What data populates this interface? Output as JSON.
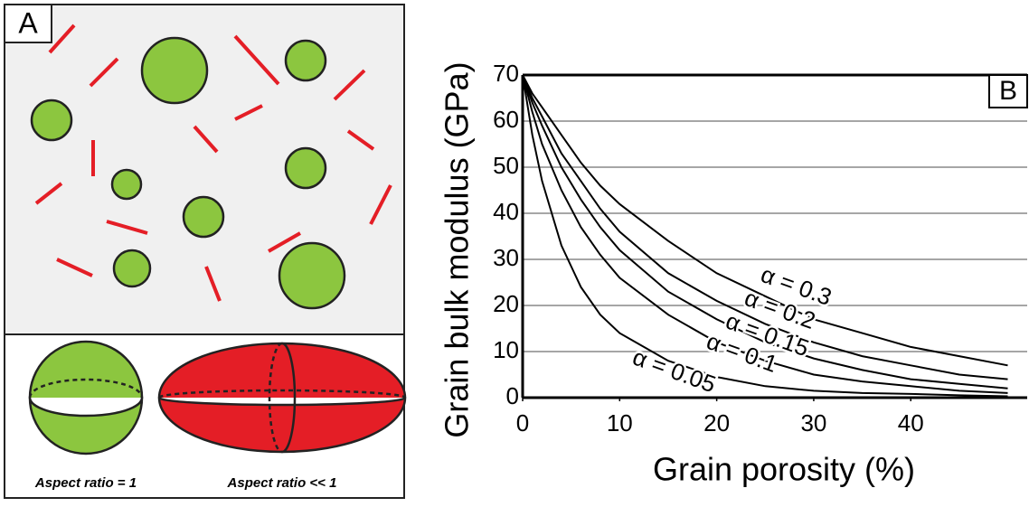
{
  "panel_a": {
    "label": "A",
    "captions": [
      "Aspect ratio = 1",
      "Aspect ratio << 1"
    ]
  },
  "chart_data": {
    "type": "line",
    "panel_label": "B",
    "x_label": "Grain porosity (%)",
    "y_label": "Grain bulk modulus (GPa)",
    "x": [
      0,
      1,
      2,
      4,
      6,
      8,
      10,
      15,
      20,
      25,
      30,
      35,
      40,
      45,
      50
    ],
    "series": [
      {
        "name": "α = 0.3",
        "color": "#000000",
        "values": [
          70,
          66,
          63,
          57,
          51,
          46,
          42,
          34,
          27,
          22,
          17,
          14,
          11,
          9,
          7
        ]
      },
      {
        "name": "α = 0.2",
        "color": "#000000",
        "values": [
          70,
          65,
          61,
          53,
          47,
          41,
          36,
          27,
          21,
          16,
          12,
          9,
          7,
          5,
          4
        ]
      },
      {
        "name": "α = 0.15",
        "color": "#000000",
        "values": [
          70,
          64,
          59,
          50,
          43,
          37,
          32,
          23,
          17,
          12,
          8.5,
          6,
          4,
          3,
          2
        ]
      },
      {
        "name": "α = 0.1",
        "color": "#000000",
        "values": [
          70,
          62,
          55,
          45,
          37,
          31,
          26,
          18,
          12,
          8,
          5,
          3.5,
          2.5,
          1.5,
          1
        ]
      },
      {
        "name": "α = 0.05",
        "color": "#000000",
        "values": [
          70,
          57,
          47,
          33,
          24,
          18,
          14,
          8,
          4.5,
          2.5,
          1.5,
          1,
          0.8,
          0.5,
          0.3
        ]
      }
    ],
    "xlim": [
      0,
      52
    ],
    "ylim": [
      0,
      70
    ],
    "xticks": [
      0,
      10,
      20,
      30,
      40
    ],
    "yticks": [
      0,
      10,
      20,
      30,
      40,
      50,
      60,
      70
    ],
    "grid": true
  }
}
